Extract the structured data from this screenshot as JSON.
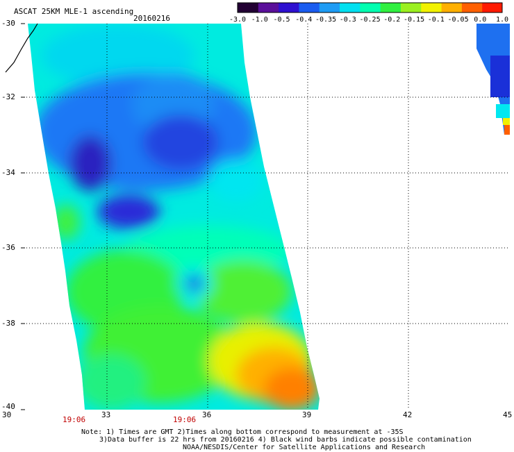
{
  "header": {
    "title": "ASCAT 25KM MLE-1 ascending",
    "date": "20160216"
  },
  "colorbar": {
    "labels": [
      "-3.0",
      "-1.0",
      "-0.5",
      "-0.4",
      "-0.35",
      "-0.3",
      "-0.25",
      "-0.2",
      "-0.15",
      "-0.1",
      "-0.05",
      "0.0",
      "1.0"
    ],
    "colors": [
      "#220033",
      "#5a0f9a",
      "#2e10d0",
      "#1a5cf0",
      "#1e9cf5",
      "#00e0f0",
      "#00ffb0",
      "#30f040",
      "#9bf020",
      "#f2f200",
      "#ffb000",
      "#ff6000",
      "#ff1a00"
    ]
  },
  "axes": {
    "lat_ticks": [
      "-30",
      "-32",
      "-34",
      "-36",
      "-38",
      "-40"
    ],
    "lon_ticks": [
      "30",
      "33",
      "36",
      "39",
      "42",
      "45"
    ]
  },
  "times": [
    "19:06",
    "19:06"
  ],
  "notes": [
    "Note: 1) Times are GMT 2)Times along bottom correspond to measurement at -35S",
    "3)Data buffer is 22 hrs from 20160216 4) Black wind barbs indicate possible contamination",
    "NOAA/NESDIS/Center for Satellite Applications and Research"
  ]
}
